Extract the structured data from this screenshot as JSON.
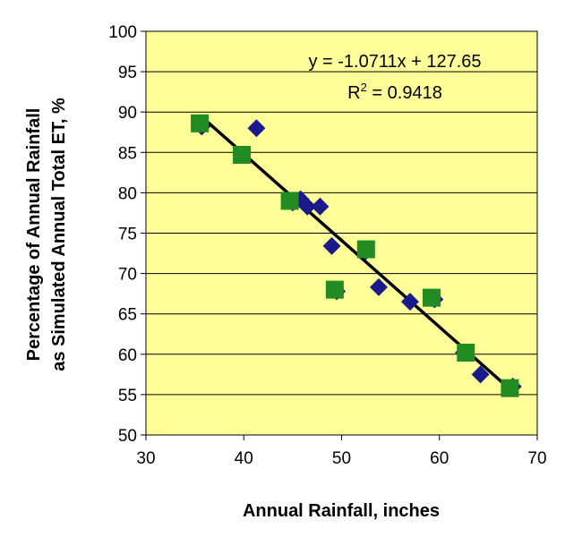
{
  "chart_data": {
    "type": "scatter",
    "title": "",
    "xlabel": "Annual Rainfall, inches",
    "ylabel_lines": [
      "Percentage of Annual Rainfall",
      "as Simulated Annual Total ET, %"
    ],
    "xlim": [
      30,
      70
    ],
    "ylim": [
      50,
      100
    ],
    "x_ticks": [
      30,
      40,
      50,
      60,
      70
    ],
    "y_ticks": [
      50,
      55,
      60,
      65,
      70,
      75,
      80,
      85,
      90,
      95,
      100
    ],
    "grid": "horizontal",
    "background": "#ffff99",
    "series": [
      {
        "name": "diamonds",
        "marker": "diamond",
        "color": "#1a1a8c",
        "points": [
          [
            35.7,
            88.2
          ],
          [
            39.8,
            84.7
          ],
          [
            41.3,
            88.0
          ],
          [
            45.0,
            78.8
          ],
          [
            45.8,
            79.2
          ],
          [
            46.5,
            78.3
          ],
          [
            47.8,
            78.3
          ],
          [
            49.0,
            73.4
          ],
          [
            49.5,
            67.8
          ],
          [
            52.5,
            72.8
          ],
          [
            53.8,
            68.3
          ],
          [
            57.0,
            66.5
          ],
          [
            59.5,
            66.8
          ],
          [
            62.5,
            60.2
          ],
          [
            64.2,
            57.5
          ],
          [
            67.5,
            56.0
          ]
        ]
      },
      {
        "name": "squares",
        "marker": "square",
        "color": "#228b22",
        "points": [
          [
            35.5,
            88.6
          ],
          [
            39.8,
            84.7
          ],
          [
            44.7,
            79.0
          ],
          [
            49.3,
            68.0
          ],
          [
            52.5,
            73.0
          ],
          [
            59.2,
            67.0
          ],
          [
            62.7,
            60.2
          ],
          [
            67.2,
            55.8
          ]
        ]
      }
    ],
    "trendline": {
      "slope": -1.0711,
      "intercept": 127.65,
      "x_range": [
        35.7,
        67.5
      ],
      "color": "#000000"
    },
    "equation_label": "y = -1.0711x + 127.65",
    "r2_prefix": "R",
    "r2_sup": "2",
    "r2_value": " = 0.9418"
  }
}
